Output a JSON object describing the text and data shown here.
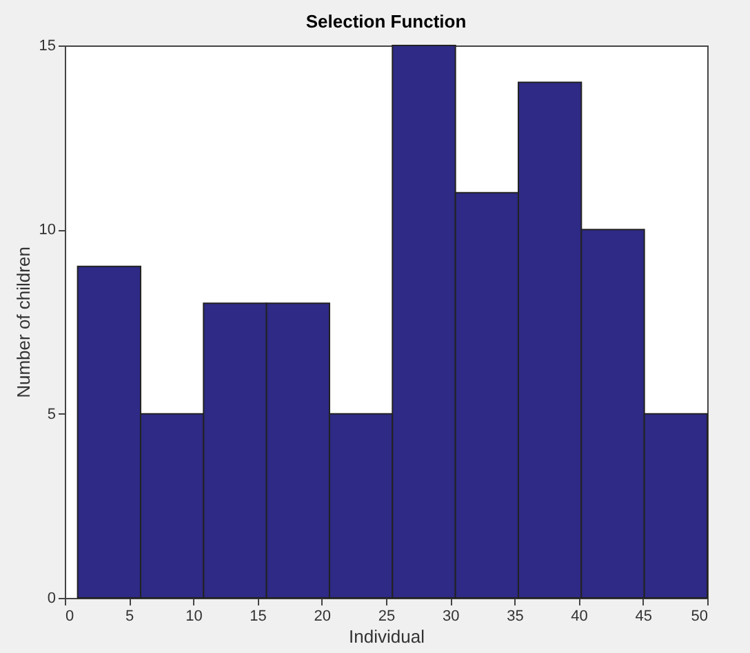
{
  "chart_data": {
    "type": "histogram",
    "title": "Selection Function",
    "xlabel": "Individual",
    "ylabel": "Number of children",
    "bins": [
      1,
      5.9,
      10.8,
      15.7,
      20.6,
      25.5,
      30.4,
      35.3,
      40.2,
      45.1,
      50
    ],
    "values": [
      9,
      5,
      8,
      8,
      5,
      15,
      11,
      14,
      10,
      5
    ],
    "color": "#2e2a86",
    "xlim": [
      0,
      50
    ],
    "xticks": [
      0,
      5,
      10,
      15,
      20,
      25,
      30,
      35,
      40,
      45,
      50
    ],
    "ylim": [
      0,
      15
    ],
    "yticks": [
      0,
      5,
      10,
      15
    ],
    "grid": false
  }
}
